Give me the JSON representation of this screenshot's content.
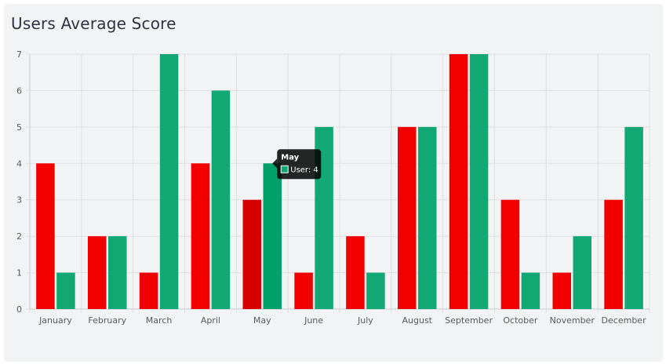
{
  "card": {
    "title": "Users Average Score"
  },
  "colors": {
    "series_a": "#f20000",
    "series_a_hover": "#d60000",
    "series_b": "#12a874",
    "series_b_hover": "#00a06a",
    "grid": "#dcdfe3",
    "tooltip_bg": "#000000"
  },
  "chart_data": {
    "type": "bar",
    "title": "Users Average Score",
    "categories": [
      "January",
      "February",
      "March",
      "April",
      "May",
      "June",
      "July",
      "August",
      "September",
      "October",
      "November",
      "December"
    ],
    "series": [
      {
        "values": [
          4,
          2,
          1,
          4,
          3,
          1,
          2,
          5,
          7,
          3,
          1,
          3
        ]
      },
      {
        "name": "User",
        "values": [
          1,
          2,
          7,
          6,
          4,
          5,
          1,
          5,
          7,
          1,
          2,
          5
        ]
      }
    ],
    "ylim": [
      0,
      7
    ],
    "yticks": [
      0,
      1,
      2,
      3,
      4,
      5,
      6,
      7
    ],
    "grid": true,
    "xlabel": "",
    "ylabel": ""
  },
  "tooltip": {
    "title": "May",
    "label": "User: 4"
  }
}
